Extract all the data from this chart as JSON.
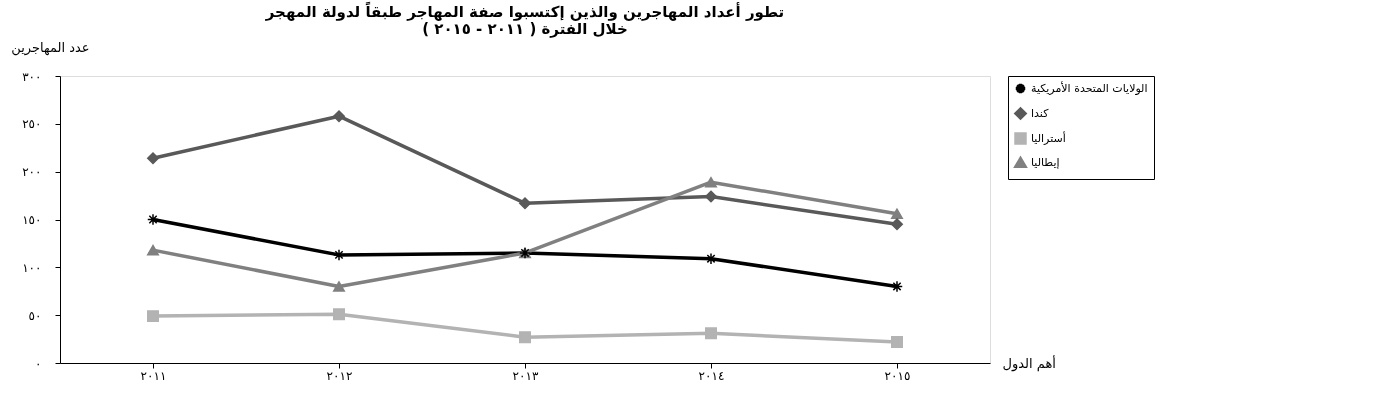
{
  "chart_data": {
    "type": "line",
    "title": [
      "تطور أعداد المهاجرين والذين إكتسبوا صفة المهاجر طبقاً لدولة المهجر",
      "خلال الفترة ( ٢٠١١ - ٢٠١٥ )"
    ],
    "ylabel": "عدد المهاجرين",
    "xlabel": "أهم الدول",
    "categories": [
      "٢٠١١",
      "٢٠١٢",
      "٢٠١٣",
      "٢٠١٤",
      "٢٠١٥"
    ],
    "series": [
      {
        "name": "الولايات المتحدة الأمريكية",
        "color": "#000000",
        "marker": "cross",
        "values": [
          150,
          113,
          115,
          109,
          80
        ]
      },
      {
        "name": "كندا",
        "color": "#595959",
        "marker": "diamond",
        "values": [
          214,
          258,
          167,
          174,
          145
        ]
      },
      {
        "name": "أستراليا",
        "color": "#b3b3b3",
        "marker": "square",
        "values": [
          49,
          51,
          27,
          31,
          22
        ]
      },
      {
        "name": "إيطاليا",
        "color": "#808080",
        "marker": "triangle",
        "values": [
          118,
          80,
          115,
          189,
          156
        ]
      }
    ],
    "ylim": [
      0,
      300
    ],
    "yticks": [
      {
        "value": 0,
        "label": "٠"
      },
      {
        "value": 50,
        "label": "٥٠"
      },
      {
        "value": 100,
        "label": "١٠٠"
      },
      {
        "value": 150,
        "label": "١٥٠"
      },
      {
        "value": 200,
        "label": "٢٠٠"
      },
      {
        "value": 250,
        "label": "٢٥٠"
      },
      {
        "value": 300,
        "label": "٣٠٠"
      }
    ],
    "grid": false,
    "legend": "top right",
    "line_style": "solid"
  }
}
